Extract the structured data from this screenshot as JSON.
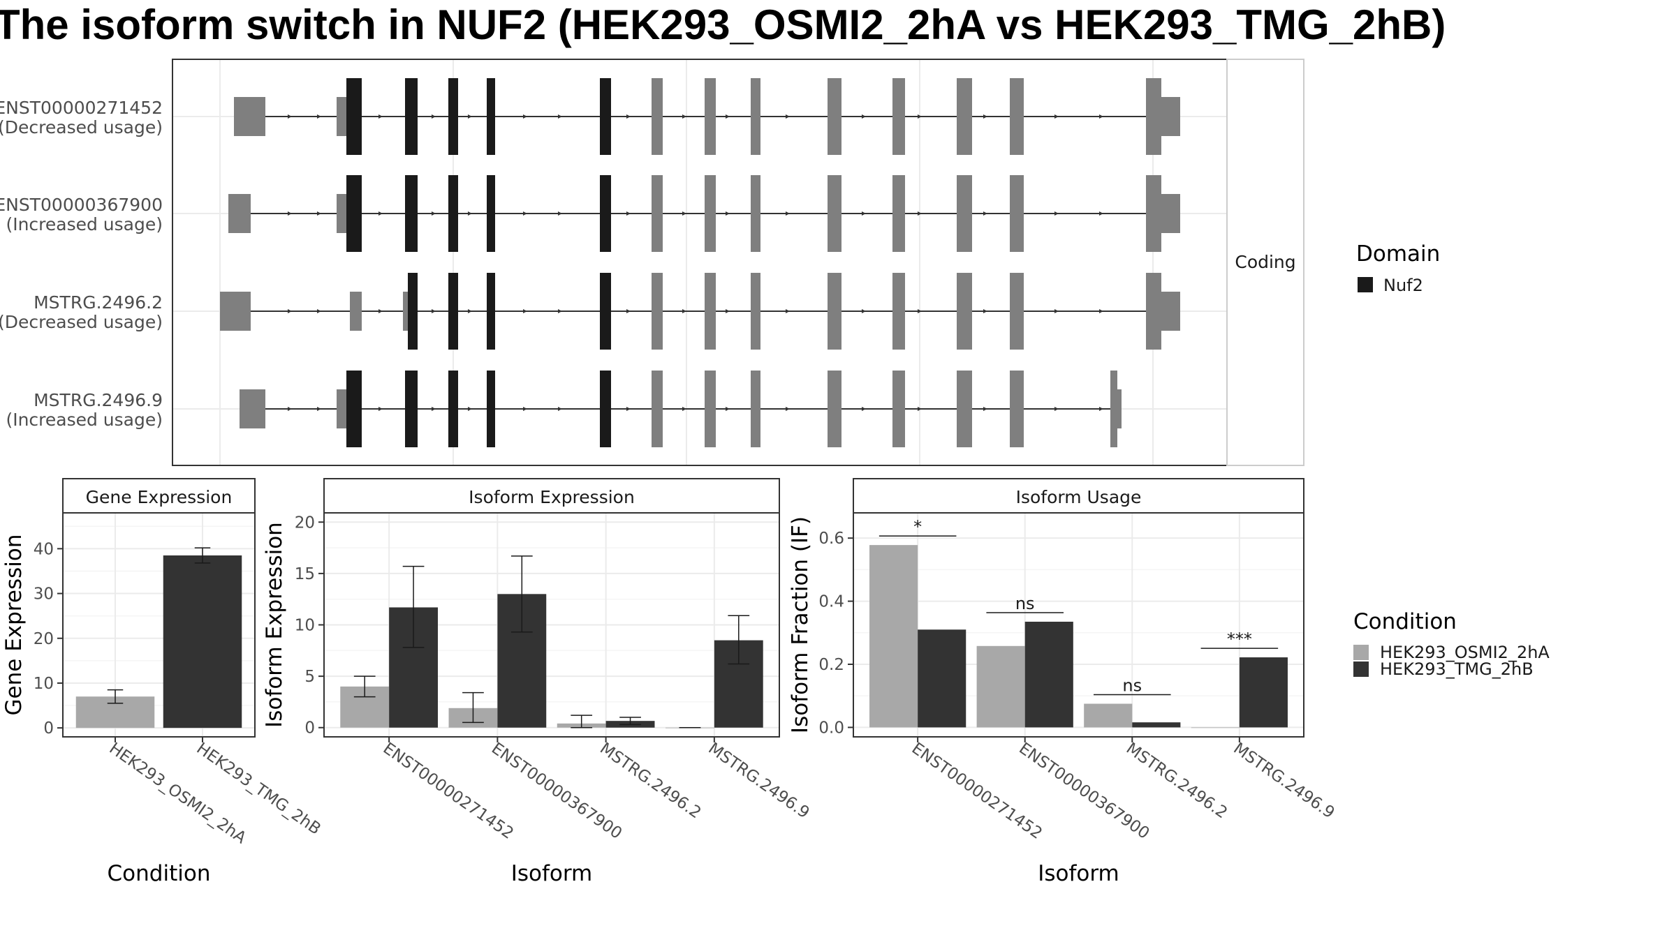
{
  "title": "The isoform switch in NUF2 (HEK293_OSMI2_2hA vs HEK293_TMG_2hB)",
  "colors": {
    "condition_a": "#a8a8a8",
    "condition_b": "#333333",
    "domain_nuf2": "#1a1a1a",
    "exon_noncoding": "#7f7f7f",
    "panel_border": "#333333",
    "grid": "#ebebeb"
  },
  "chart_data": [
    {
      "panel": "isoform-structure",
      "type": "gene-structure",
      "facet_label": "Coding",
      "isoforms": [
        {
          "id": "ENST00000271452",
          "usage": "(Decreased usage)"
        },
        {
          "id": "ENST00000367900",
          "usage": "(Increased usage)"
        },
        {
          "id": "MSTRG.2496.2",
          "usage": "(Decreased usage)"
        },
        {
          "id": "MSTRG.2496.9",
          "usage": "(Increased usage)"
        }
      ],
      "legend": {
        "title": "Domain",
        "items": [
          "Nuf2"
        ]
      }
    },
    {
      "panel": "gene-expression",
      "type": "bar",
      "strip": "Gene Expression",
      "xlabel": "Condition",
      "ylabel": "Gene Expression",
      "ylim": [
        -2,
        48
      ],
      "yticks": [
        0,
        10,
        20,
        30,
        40
      ],
      "categories": [
        "HEK293_OSMI2_2hA",
        "HEK293_TMG_2hB"
      ],
      "values": [
        7.0,
        38.5
      ],
      "error": [
        [
          5.5,
          8.5
        ],
        [
          36.8,
          40.2
        ]
      ]
    },
    {
      "panel": "isoform-expression",
      "type": "bar",
      "strip": "Isoform Expression",
      "xlabel": "Isoform",
      "ylabel": "Isoform Expression",
      "ylim": [
        -0.9,
        20.9
      ],
      "yticks": [
        0,
        5,
        10,
        15,
        20
      ],
      "categories": [
        "ENST00000271452",
        "ENST00000367900",
        "MSTRG.2496.2",
        "MSTRG.2496.9"
      ],
      "series": [
        {
          "name": "HEK293_OSMI2_2hA",
          "values": [
            4.0,
            1.9,
            0.4,
            0.0
          ],
          "error": [
            [
              3.0,
              5.0
            ],
            [
              0.5,
              3.4
            ],
            [
              0.0,
              1.2
            ],
            [
              0.0,
              0.0
            ]
          ]
        },
        {
          "name": "HEK293_TMG_2hB",
          "values": [
            11.7,
            13.0,
            0.65,
            8.5
          ],
          "error": [
            [
              7.8,
              15.7
            ],
            [
              9.3,
              16.7
            ],
            [
              0.3,
              1.0
            ],
            [
              6.2,
              10.9
            ]
          ]
        }
      ]
    },
    {
      "panel": "isoform-usage",
      "type": "bar",
      "strip": "Isoform Usage",
      "xlabel": "Isoform",
      "ylabel": "Isoform Fraction (IF)",
      "ylim": [
        -0.03,
        0.68
      ],
      "yticks": [
        0.0,
        0.2,
        0.4,
        0.6
      ],
      "ytick_labels": [
        "0.0",
        "0.2",
        "0.4",
        "0.6"
      ],
      "categories": [
        "ENST00000271452",
        "ENST00000367900",
        "MSTRG.2496.2",
        "MSTRG.2496.9"
      ],
      "series": [
        {
          "name": "HEK293_OSMI2_2hA",
          "values": [
            0.578,
            0.258,
            0.075,
            0.0
          ]
        },
        {
          "name": "HEK293_TMG_2hB",
          "values": [
            0.31,
            0.335,
            0.016,
            0.222
          ]
        }
      ],
      "significance": [
        "*",
        "ns",
        "ns",
        "***"
      ],
      "legend": {
        "title": "Condition",
        "items": [
          "HEK293_OSMI2_2hA",
          "HEK293_TMG_2hB"
        ]
      }
    }
  ]
}
